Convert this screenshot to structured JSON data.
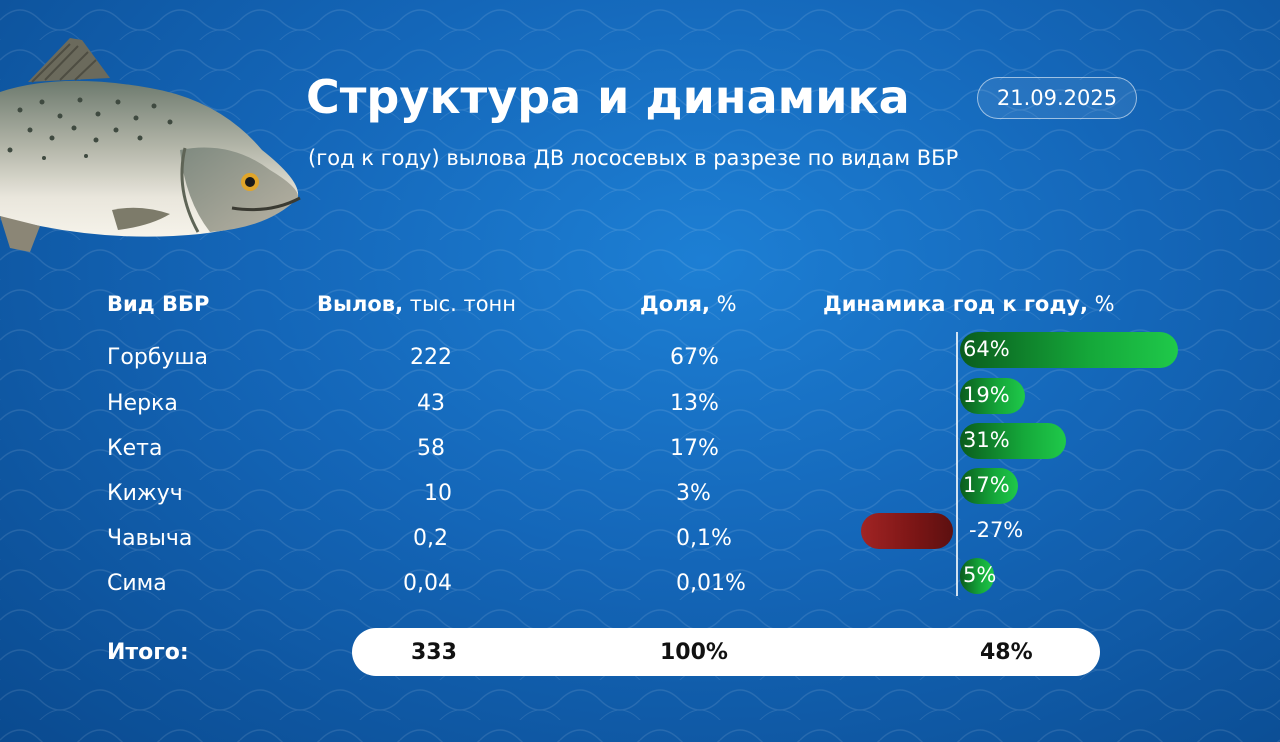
{
  "header": {
    "title": "Структура и динамика",
    "date": "21.09.2025",
    "subtitle": "(год к году) вылова ДВ лососевых в разрезе по видам ВБР"
  },
  "columns": {
    "species": "Вид ВБР",
    "catch_bold": "Вылов,",
    "catch_unit": " тыс. тонн",
    "share_bold": "Доля,",
    "share_unit": " %",
    "dynamics_bold": "Динамика год к году,",
    "dynamics_unit": " %"
  },
  "rows": [
    {
      "species": "Горбуша",
      "catch": "222",
      "share": "67%",
      "dynamics": "64%"
    },
    {
      "species": "Нерка",
      "catch": "43",
      "share": "13%",
      "dynamics": "19%"
    },
    {
      "species": "Кета",
      "catch": "58",
      "share": "17%",
      "dynamics": "31%"
    },
    {
      "species": "Кижуч",
      "catch": "10",
      "share": "3%",
      "dynamics": "17%"
    },
    {
      "species": "Чавыча",
      "catch": "0,2",
      "share": "0,1%",
      "dynamics": "-27%"
    },
    {
      "species": "Сима",
      "catch": "0,04",
      "share": "0,01%",
      "dynamics": "5%"
    }
  ],
  "total": {
    "label": "Итого:",
    "catch": "333",
    "share": "100%",
    "dynamics": "48%"
  },
  "chart_data": {
    "type": "bar",
    "orientation": "horizontal",
    "title": "Динамика год к году, %",
    "categories": [
      "Горбуша",
      "Нерка",
      "Кета",
      "Кижуч",
      "Чавыча",
      "Сима"
    ],
    "values": [
      64,
      19,
      31,
      17,
      -27,
      5
    ],
    "unit": "%",
    "colors": {
      "positive": "#1fc94a",
      "negative": "#8b1a1a"
    }
  }
}
